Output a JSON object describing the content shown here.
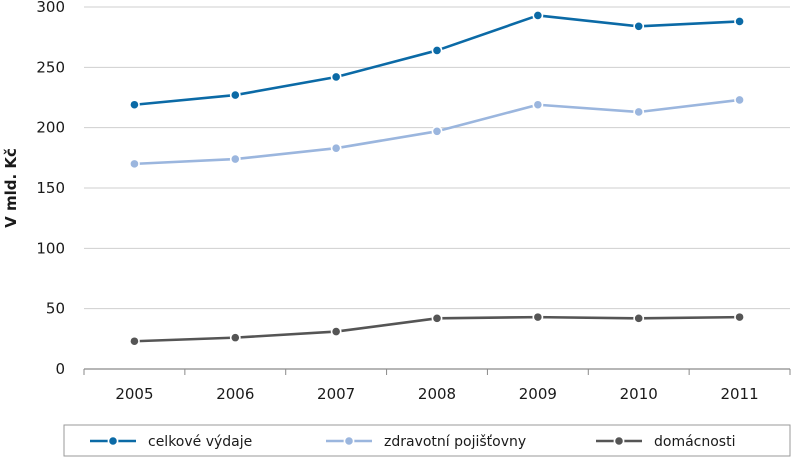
{
  "chart_data": {
    "type": "line",
    "categories": [
      "2005",
      "2006",
      "2007",
      "2008",
      "2009",
      "2010",
      "2011"
    ],
    "ylabel": "V mld. Kč",
    "ylim": [
      0,
      300
    ],
    "yticks": [
      "0",
      "50",
      "100",
      "150",
      "200",
      "250",
      "300"
    ],
    "grid": true,
    "legend_position": "bottom",
    "series": [
      {
        "name": "celkové výdaje",
        "color": "#0b6aa6",
        "values": [
          219,
          227,
          242,
          264,
          293,
          284,
          288
        ]
      },
      {
        "name": "zdravotní pojišťovny",
        "color": "#9bb6de",
        "values": [
          170,
          174,
          183,
          197,
          219,
          213,
          223
        ]
      },
      {
        "name": "domácnosti",
        "color": "#555555",
        "values": [
          23,
          26,
          31,
          42,
          43,
          42,
          43
        ]
      }
    ]
  }
}
